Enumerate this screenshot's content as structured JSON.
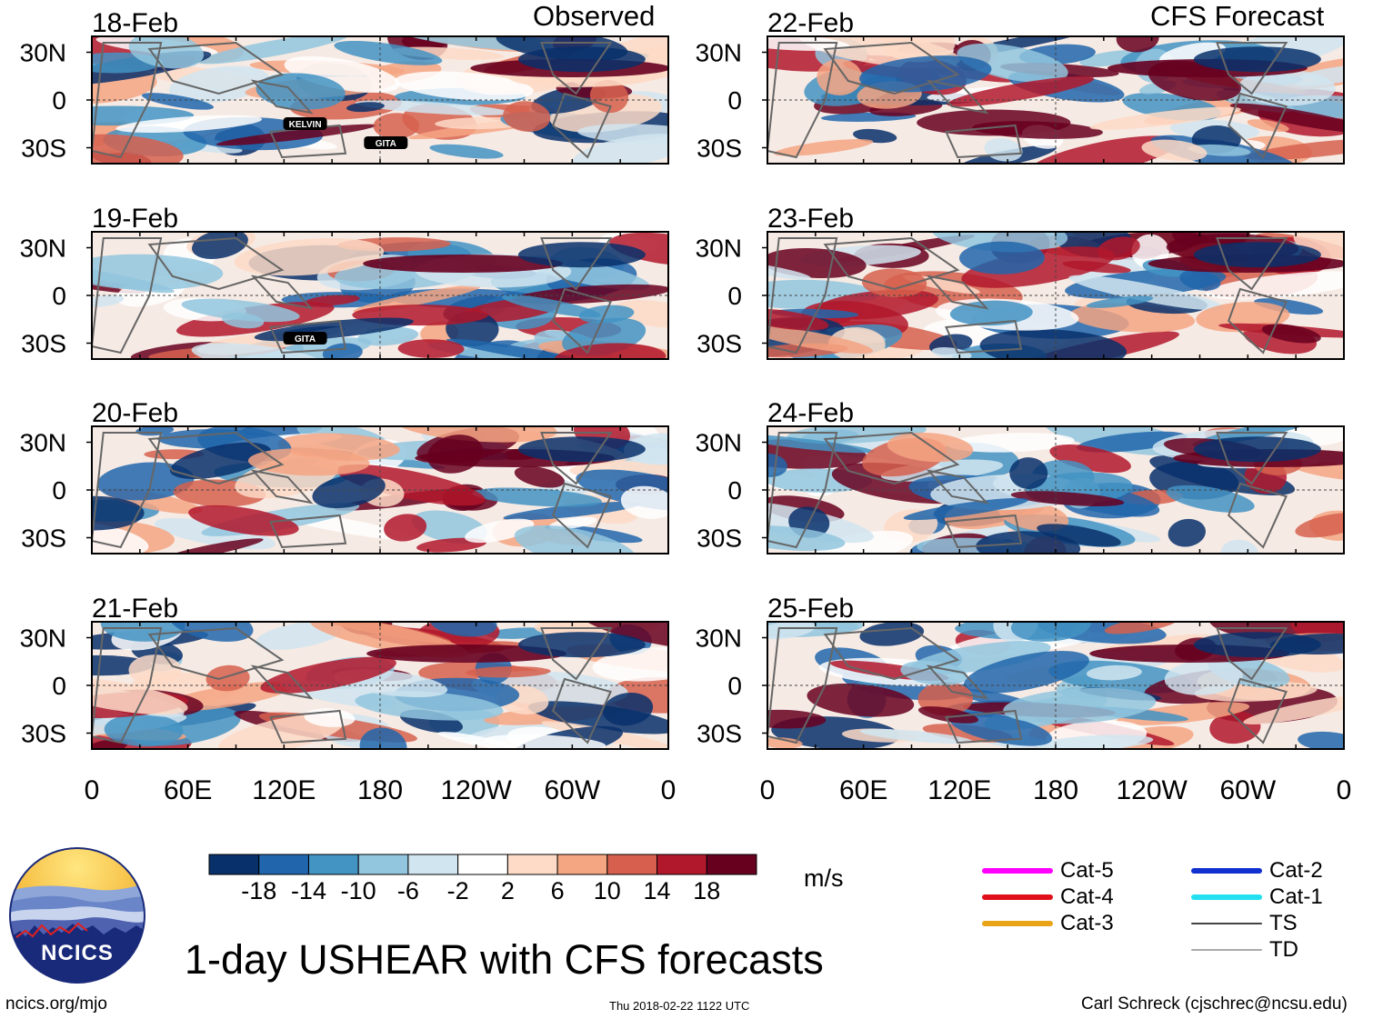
{
  "header": {
    "left_label": "Observed",
    "right_label": "CFS Forecast"
  },
  "chart_data": {
    "type": "heatmap",
    "variable": "USHEAR",
    "units": "m/s",
    "title": "1-day USHEAR with CFS forecasts",
    "x_axis": {
      "ticks": [
        "0",
        "60E",
        "120E",
        "180",
        "120W",
        "60W",
        "0"
      ],
      "range_lon_east": [
        0,
        360
      ]
    },
    "y_axis": {
      "ticks": [
        "30N",
        "0",
        "30S"
      ],
      "range_lat": [
        -40,
        40
      ]
    },
    "panels": [
      {
        "date": "18-Feb",
        "source": "Observed",
        "storms": [
          "KELVIN",
          "GITA"
        ]
      },
      {
        "date": "19-Feb",
        "source": "Observed",
        "storms": [
          "GITA"
        ]
      },
      {
        "date": "20-Feb",
        "source": "Observed",
        "storms": []
      },
      {
        "date": "21-Feb",
        "source": "Observed",
        "storms": []
      },
      {
        "date": "22-Feb",
        "source": "CFS Forecast",
        "storms": []
      },
      {
        "date": "23-Feb",
        "source": "CFS Forecast",
        "storms": []
      },
      {
        "date": "24-Feb",
        "source": "CFS Forecast",
        "storms": []
      },
      {
        "date": "25-Feb",
        "source": "CFS Forecast",
        "storms": []
      }
    ],
    "colorbar": {
      "labels": [
        "-18",
        "-14",
        "-10",
        "-6",
        "-2",
        "2",
        "6",
        "10",
        "14",
        "18"
      ],
      "colors": [
        "#08306b",
        "#2166ac",
        "#4393c3",
        "#92c5de",
        "#d1e5f0",
        "#ffffff",
        "#fddbc7",
        "#f4a582",
        "#d6604d",
        "#b2182b",
        "#67001f"
      ]
    },
    "legend": [
      {
        "label": "Cat-5",
        "color": "#ff00ff"
      },
      {
        "label": "Cat-4",
        "color": "#e0101a"
      },
      {
        "label": "Cat-3",
        "color": "#e8a317"
      },
      {
        "label": "Cat-2",
        "color": "#1030d0"
      },
      {
        "label": "Cat-1",
        "color": "#22e0f0"
      },
      {
        "label": "TS",
        "color": "#444444"
      },
      {
        "label": "TD",
        "color": "#aaaaaa"
      }
    ]
  },
  "logo": {
    "text": "NCICS"
  },
  "footer": {
    "url": "ncics.org/mjo",
    "timestamp": "Thu 2018-02-22 1122 UTC",
    "credit": "Carl Schreck (cjschrec@ncsu.edu)"
  }
}
